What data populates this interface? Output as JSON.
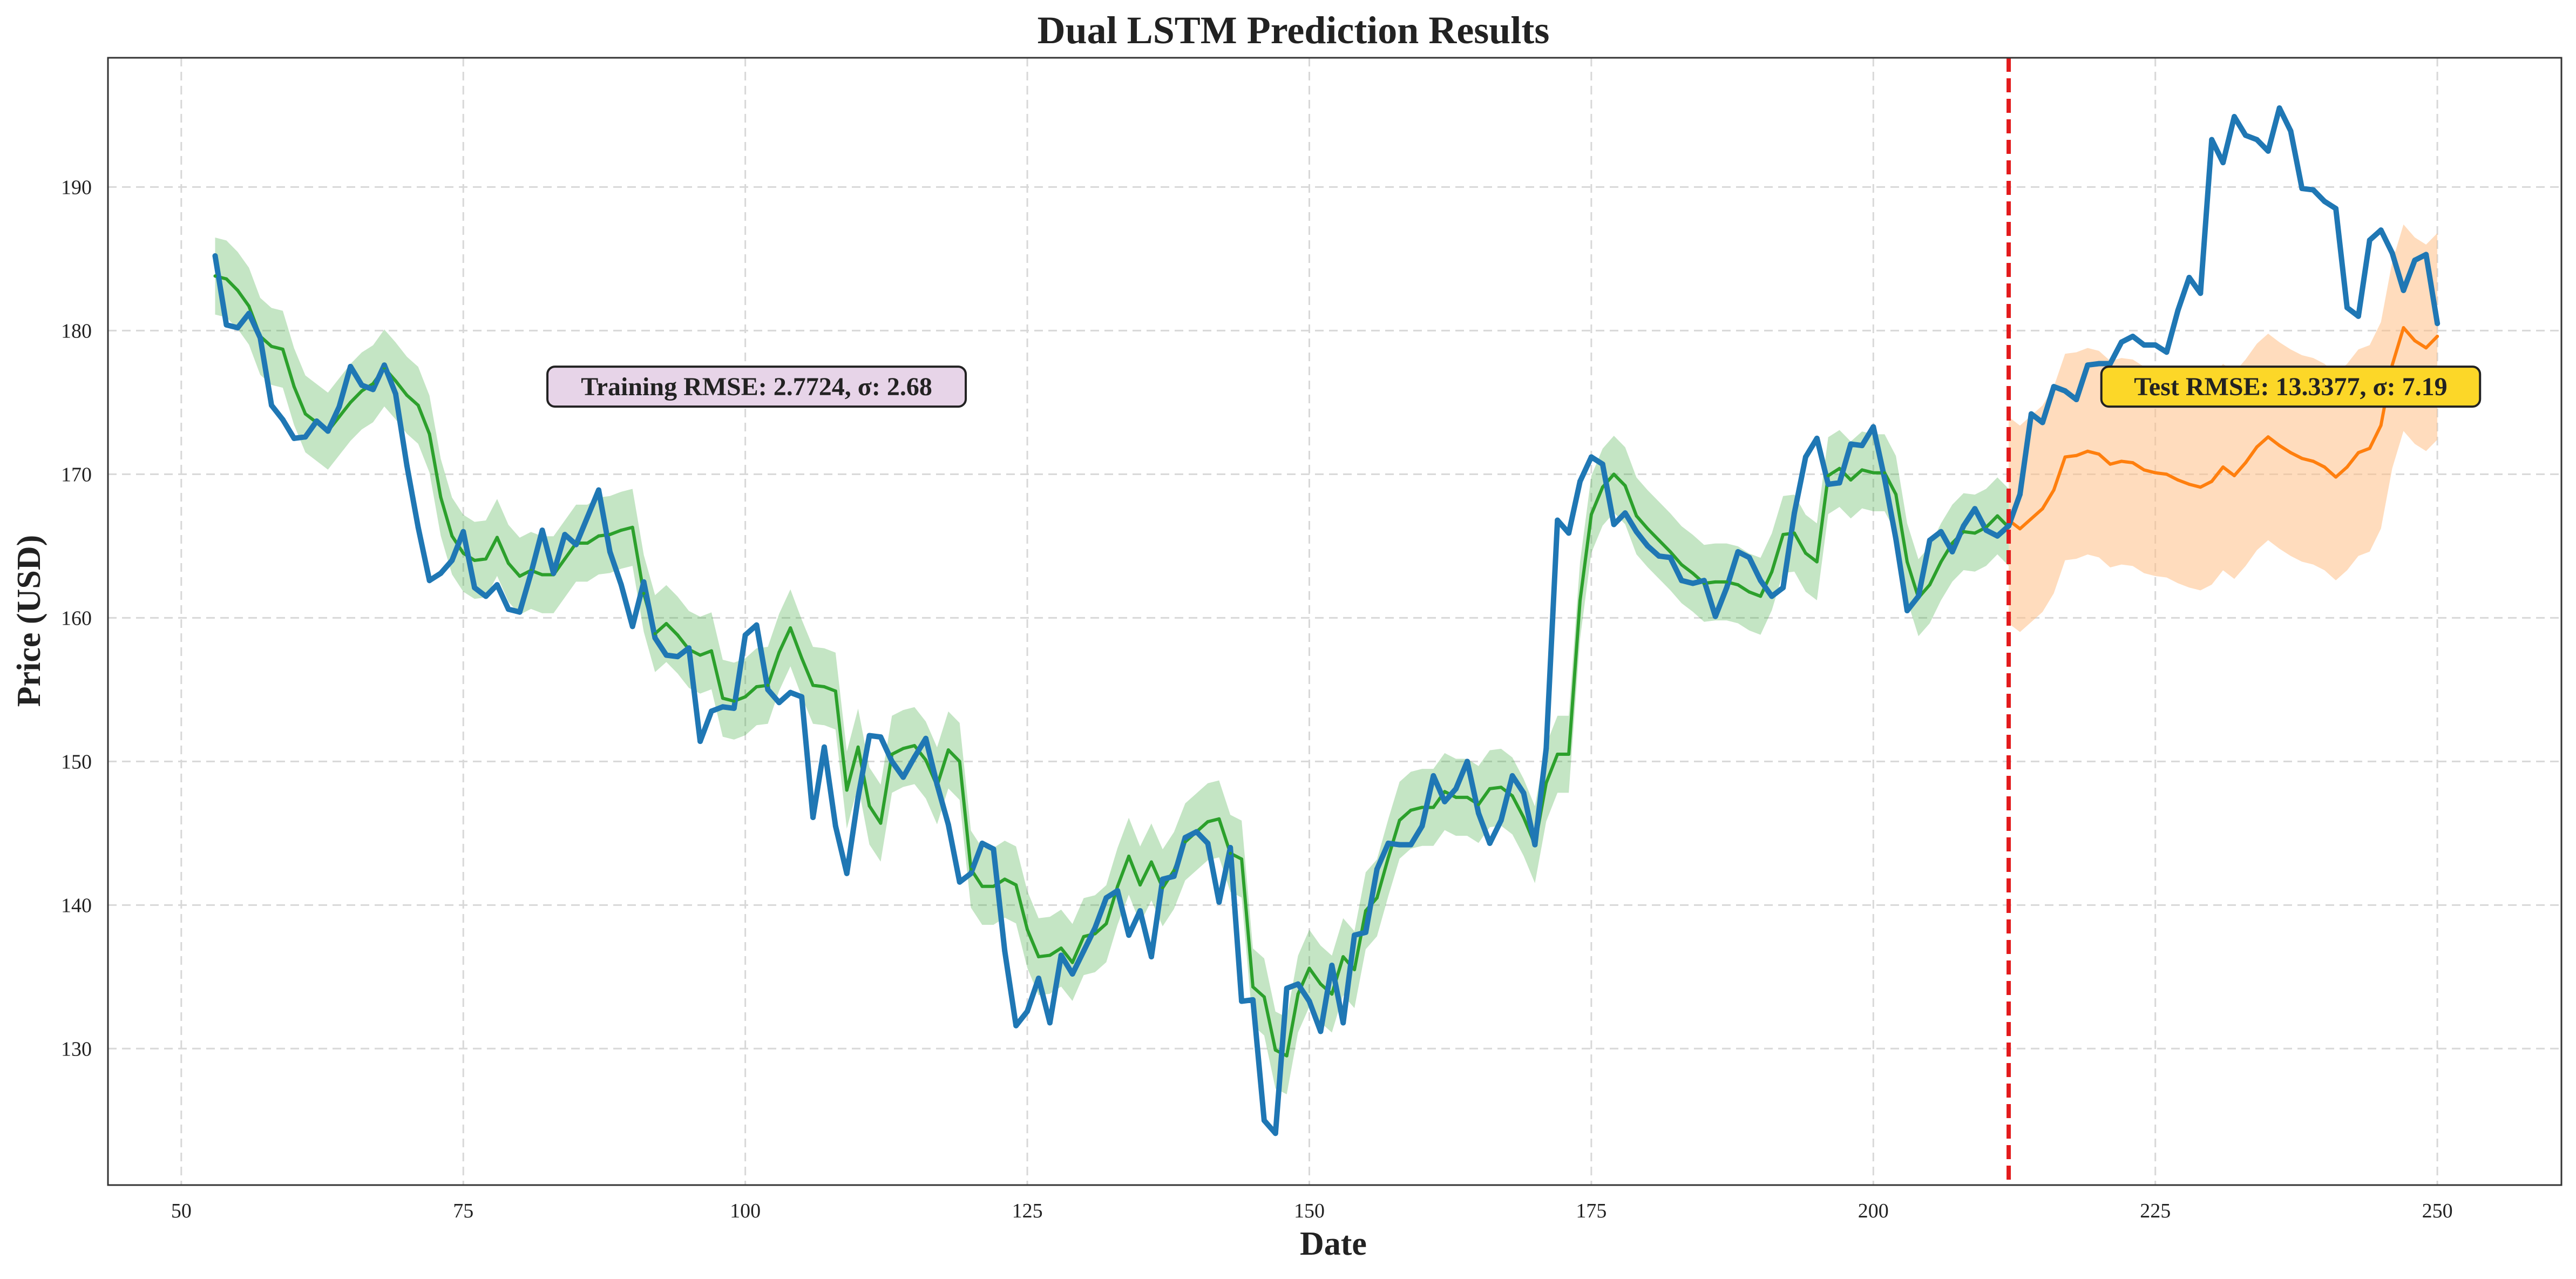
{
  "chart_data": {
    "type": "line",
    "title": "Dual LSTM Prediction Results",
    "xlabel": "Date",
    "ylabel": "Price (USD)",
    "xlim": [
      43.5,
      261
    ],
    "ylim": [
      120.5,
      199
    ],
    "x_ticks": [
      50,
      75,
      100,
      125,
      150,
      175,
      200,
      225,
      250
    ],
    "y_ticks": [
      130,
      140,
      150,
      160,
      170,
      180,
      190
    ],
    "grid": true,
    "split_x": 212,
    "annotations": {
      "train": {
        "text": "Training RMSE: 2.7724, σ: 2.68",
        "x": 101,
        "y": 176.1
      },
      "test": {
        "text": "Test RMSE: 13.3377, σ: 7.19",
        "x": 237,
        "y": 176.1
      }
    },
    "series": [
      {
        "role": "actual",
        "color": "#1f77b4",
        "x_start": 53,
        "values": [
          185.2,
          180.4,
          180.2,
          181.2,
          179.5,
          174.8,
          173.8,
          172.5,
          172.6,
          173.7,
          173.0,
          174.7,
          177.5,
          176.2,
          175.9,
          177.6,
          175.6,
          170.6,
          166.3,
          162.6,
          163.1,
          164.0,
          166.0,
          162.1,
          161.5,
          162.3,
          160.6,
          160.4,
          163.1,
          166.1,
          163.1,
          165.8,
          165.1,
          167.0,
          168.9,
          164.6,
          162.3,
          159.4,
          162.5,
          158.6,
          157.4,
          157.3,
          157.9,
          151.4,
          153.5,
          153.8,
          153.7,
          158.8,
          159.5,
          155.0,
          154.1,
          154.8,
          154.5,
          146.1,
          151.0,
          145.5,
          142.2,
          147.5,
          151.8,
          151.7,
          150.0,
          148.9,
          150.3,
          151.6,
          148.4,
          145.6,
          141.6,
          142.2,
          144.3,
          143.9,
          136.8,
          131.6,
          132.6,
          134.9,
          131.8,
          136.5,
          135.2,
          136.8,
          138.4,
          140.5,
          141.0,
          137.9,
          139.6,
          136.4,
          141.8,
          142.0,
          144.7,
          145.1,
          144.3,
          140.2,
          144.0,
          133.3,
          133.4,
          125.0,
          124.1,
          134.2,
          134.5,
          133.3,
          131.2,
          135.8,
          131.8,
          137.9,
          138.1,
          142.5,
          144.3,
          144.2,
          144.2,
          145.5,
          149.0,
          147.2,
          148.1,
          150.0,
          146.4,
          144.3,
          145.9,
          149.0,
          147.8,
          144.2,
          150.9,
          166.8,
          165.9,
          169.5,
          171.2,
          170.7,
          166.5,
          167.3,
          166.0,
          165.0,
          164.3,
          164.2,
          162.6,
          162.4,
          162.6,
          160.1,
          162.1,
          164.6,
          164.2,
          162.6,
          161.5,
          162.1,
          167.3,
          171.2,
          172.5,
          169.3,
          169.4,
          172.1,
          172.0,
          173.3,
          169.7,
          165.5,
          160.5,
          161.5,
          165.4,
          166.0,
          164.6,
          166.4,
          167.6,
          166.1,
          165.7,
          166.4,
          168.6,
          174.2,
          173.6,
          176.1,
          175.8,
          175.2,
          177.6,
          177.7,
          177.7,
          179.2,
          179.6,
          179.0,
          179.0,
          178.5,
          181.4,
          183.7,
          182.6,
          193.3,
          191.7,
          194.9,
          193.6,
          193.3,
          192.5,
          195.5,
          193.9,
          189.9,
          189.8,
          189.0,
          188.5,
          181.6,
          181.0,
          186.3,
          187.0,
          185.4,
          182.8,
          184.9,
          185.3,
          180.5
        ]
      },
      {
        "role": "train_prediction",
        "color": "#2ca02c",
        "band_color": "#2ca02c",
        "band_sigma": 2.68,
        "x_start": 53,
        "values": [
          183.8,
          183.6,
          182.8,
          181.7,
          179.6,
          178.9,
          178.7,
          176.1,
          174.2,
          173.6,
          173.0,
          174.0,
          175.0,
          175.8,
          176.3,
          177.4,
          176.5,
          175.5,
          174.8,
          172.8,
          168.4,
          165.7,
          164.5,
          164.0,
          164.1,
          165.6,
          163.8,
          162.9,
          163.3,
          163.0,
          163.0,
          164.1,
          165.2,
          165.2,
          165.7,
          165.8,
          166.1,
          166.3,
          161.7,
          158.9,
          159.6,
          158.8,
          157.8,
          157.4,
          157.7,
          154.4,
          154.2,
          154.5,
          155.2,
          155.3,
          157.6,
          159.3,
          157.2,
          155.3,
          155.2,
          154.9,
          148.0,
          151.0,
          146.9,
          145.7,
          150.5,
          150.9,
          151.1,
          150.1,
          148.3,
          150.8,
          150.0,
          142.5,
          141.3,
          141.3,
          141.8,
          141.4,
          138.3,
          136.4,
          136.5,
          137.0,
          136.0,
          137.8,
          138.0,
          138.7,
          141.3,
          143.4,
          141.4,
          143.0,
          141.2,
          142.4,
          144.4,
          145.1,
          145.8,
          146.0,
          143.6,
          143.2,
          134.3,
          133.6,
          129.9,
          129.5,
          133.8,
          135.6,
          134.5,
          133.8,
          136.4,
          135.5,
          139.6,
          140.5,
          143.3,
          145.9,
          146.6,
          146.8,
          146.8,
          147.9,
          147.5,
          147.5,
          147.0,
          148.1,
          148.2,
          147.6,
          146.1,
          144.2,
          148.5,
          150.5,
          150.5,
          161.2,
          167.2,
          169.1,
          170.0,
          169.2,
          167.1,
          166.2,
          165.4,
          164.6,
          163.7,
          163.1,
          162.4,
          162.5,
          162.5,
          162.3,
          161.8,
          161.5,
          163.2,
          165.8,
          165.9,
          164.5,
          163.9,
          169.9,
          170.4,
          169.6,
          170.3,
          170.1,
          170.1,
          168.6,
          163.9,
          161.4,
          162.3,
          163.9,
          165.2,
          166.0,
          165.9,
          166.3,
          167.1,
          166.3
        ]
      },
      {
        "role": "test_prediction",
        "color": "#ff7f0e",
        "band_color": "#ffbf86",
        "band_sigma": 7.19,
        "x_start": 212,
        "values": [
          166.8,
          166.2,
          166.9,
          167.6,
          168.9,
          171.2,
          171.3,
          171.6,
          171.4,
          170.7,
          170.9,
          170.8,
          170.3,
          170.1,
          170.0,
          169.6,
          169.3,
          169.1,
          169.5,
          170.5,
          169.9,
          170.8,
          171.9,
          172.6,
          172.0,
          171.5,
          171.1,
          170.9,
          170.5,
          169.8,
          170.5,
          171.5,
          171.8,
          173.4,
          177.6,
          180.2,
          179.3,
          178.8,
          179.6
        ]
      }
    ]
  }
}
